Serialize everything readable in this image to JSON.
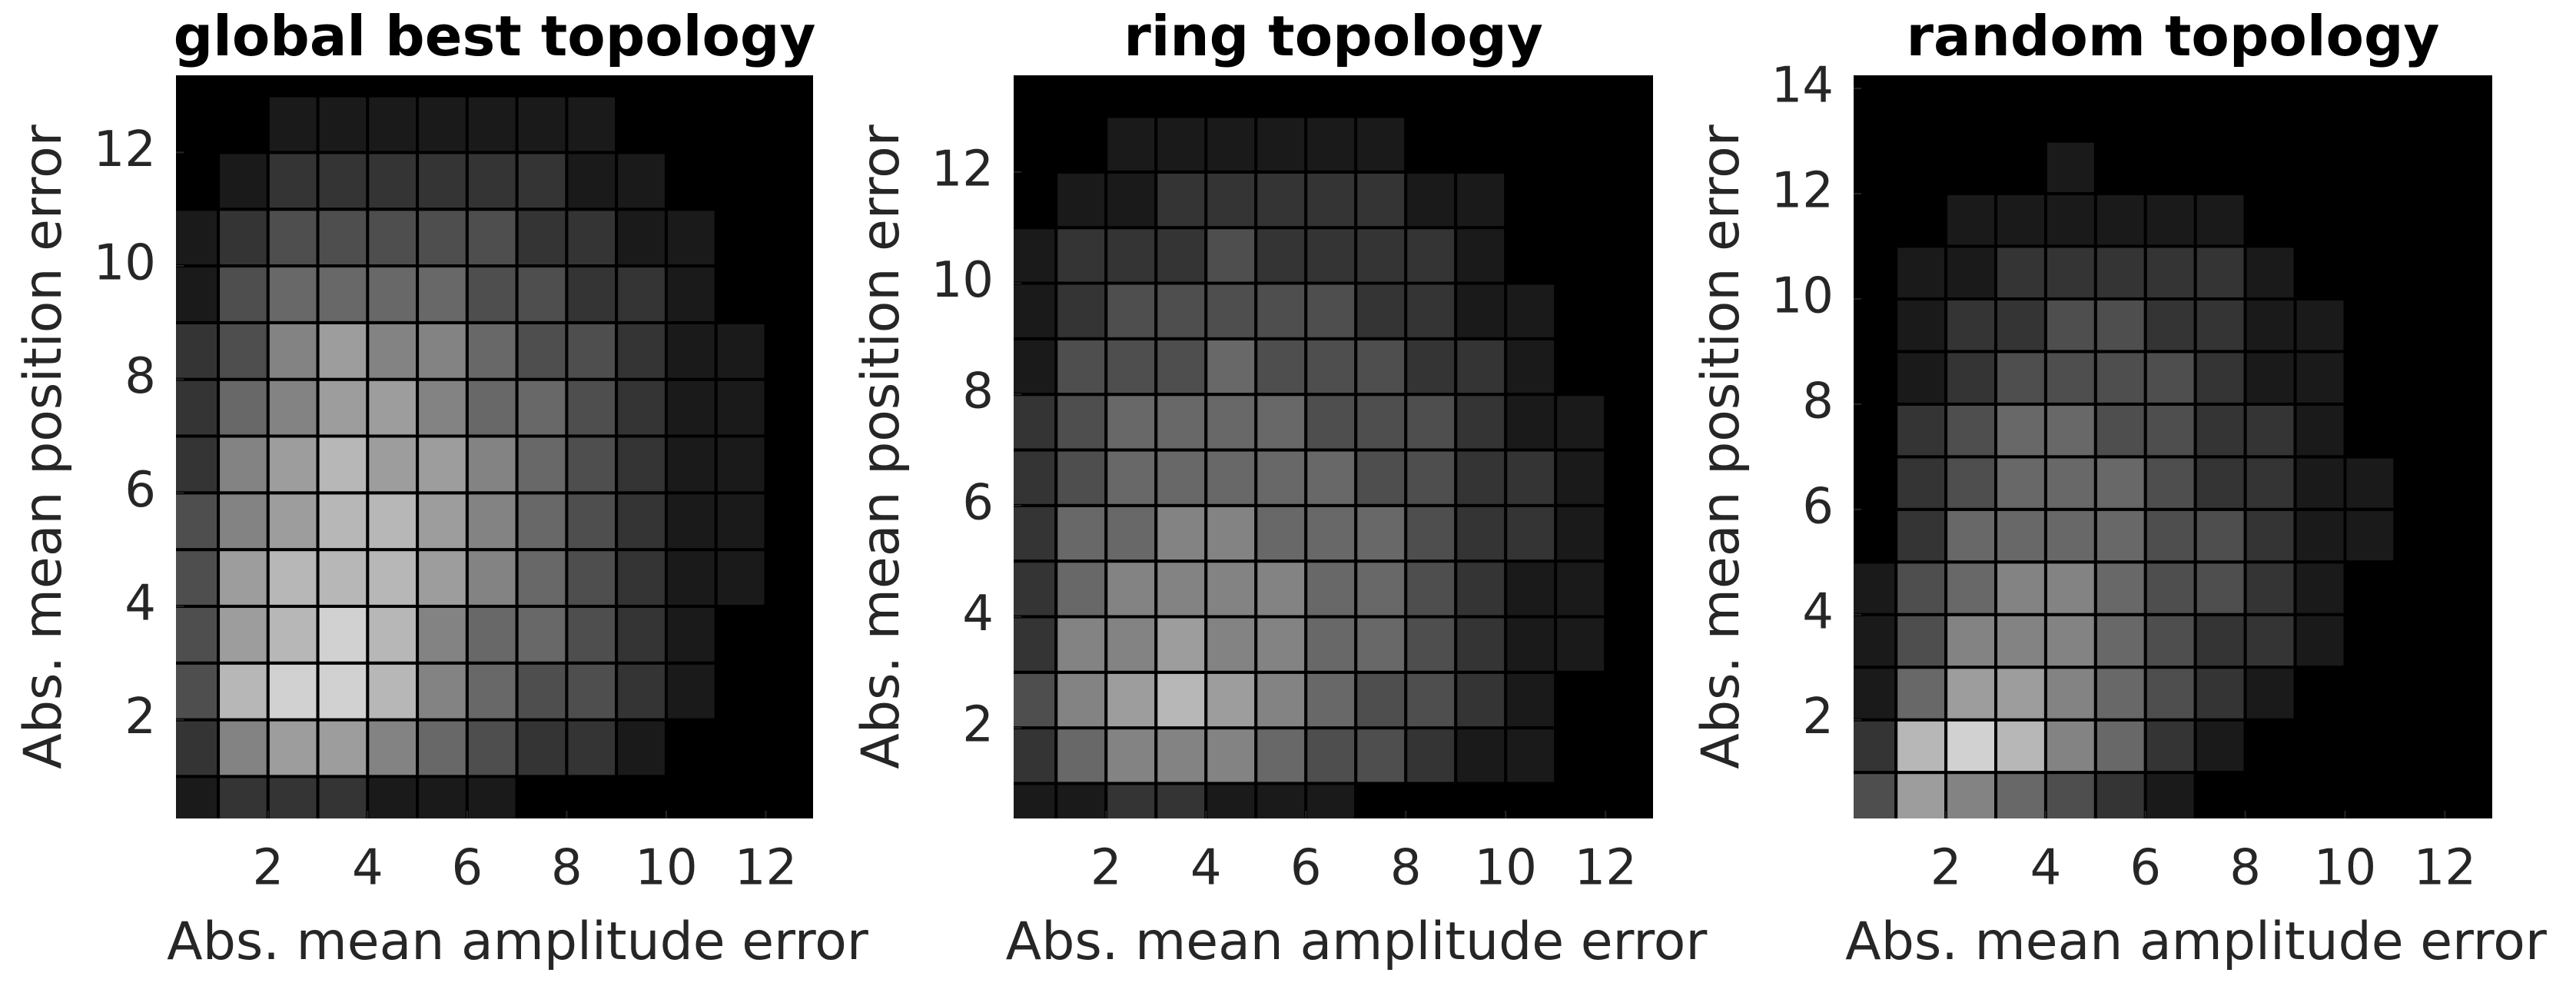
{
  "chart_data": [
    {
      "type": "heatmap",
      "title": "global best topology",
      "xlabel": "Abs. mean amplitude error",
      "ylabel": "Abs. mean position error",
      "colormap": "gray",
      "zlim": [
        0,
        9
      ],
      "xlim": [
        0.15,
        12.95
      ],
      "ylim": [
        0.26,
        13.36
      ],
      "xticks": [
        2,
        4,
        6,
        8,
        10,
        12
      ],
      "yticks": [
        2,
        4,
        6,
        8,
        10,
        12
      ],
      "xbins": [
        0,
        1,
        2,
        3,
        4,
        5,
        6,
        7,
        8,
        9,
        10,
        11,
        12,
        13
      ],
      "ybins": [
        0,
        1,
        2,
        3,
        4,
        5,
        6,
        7,
        8,
        9,
        10,
        11,
        12,
        13,
        14
      ],
      "z": [
        [
          1,
          2,
          2,
          2,
          1,
          1,
          1,
          0,
          0,
          0,
          0,
          0,
          0
        ],
        [
          2,
          5,
          6,
          6,
          5,
          4,
          3,
          2,
          2,
          1,
          0,
          0,
          0
        ],
        [
          3,
          7,
          8,
          8,
          7,
          5,
          4,
          3,
          3,
          2,
          1,
          0,
          0
        ],
        [
          3,
          6,
          7,
          8,
          7,
          5,
          4,
          4,
          3,
          2,
          1,
          0,
          0
        ],
        [
          3,
          6,
          7,
          7,
          7,
          6,
          5,
          4,
          3,
          2,
          1,
          1,
          0
        ],
        [
          3,
          5,
          6,
          7,
          7,
          6,
          5,
          4,
          3,
          2,
          1,
          1,
          0
        ],
        [
          2,
          5,
          6,
          7,
          6,
          6,
          5,
          4,
          3,
          2,
          1,
          1,
          0
        ],
        [
          2,
          4,
          5,
          6,
          6,
          5,
          4,
          4,
          3,
          2,
          1,
          1,
          0
        ],
        [
          2,
          3,
          5,
          6,
          5,
          5,
          4,
          3,
          3,
          2,
          1,
          1,
          0
        ],
        [
          1,
          3,
          4,
          4,
          4,
          4,
          3,
          3,
          2,
          2,
          1,
          0,
          0
        ],
        [
          1,
          2,
          3,
          3,
          3,
          3,
          3,
          2,
          2,
          1,
          1,
          0,
          0
        ],
        [
          0,
          1,
          2,
          2,
          2,
          2,
          2,
          2,
          1,
          1,
          0,
          0,
          0
        ],
        [
          0,
          0,
          1,
          1,
          1,
          1,
          1,
          1,
          1,
          0,
          0,
          0,
          0
        ],
        [
          0,
          0,
          0,
          0,
          0,
          0,
          0,
          0,
          0,
          0,
          0,
          0,
          0
        ]
      ]
    },
    {
      "type": "heatmap",
      "title": "ring topology",
      "xlabel": "Abs. mean amplitude error",
      "ylabel": "Abs. mean position error",
      "colormap": "gray",
      "zlim": [
        0,
        9
      ],
      "xlim": [
        0.15,
        12.95
      ],
      "ylim": [
        0.37,
        13.74
      ],
      "xticks": [
        2,
        4,
        6,
        8,
        10,
        12
      ],
      "yticks": [
        2,
        4,
        6,
        8,
        10,
        12
      ],
      "xbins": [
        0,
        1,
        2,
        3,
        4,
        5,
        6,
        7,
        8,
        9,
        10,
        11,
        12,
        13
      ],
      "ybins": [
        0,
        1,
        2,
        3,
        4,
        5,
        6,
        7,
        8,
        9,
        10,
        11,
        12,
        13,
        14
      ],
      "z": [
        [
          1,
          1,
          2,
          2,
          1,
          1,
          1,
          0,
          0,
          0,
          0,
          0,
          0
        ],
        [
          2,
          4,
          5,
          5,
          5,
          4,
          3,
          3,
          2,
          1,
          1,
          0,
          0
        ],
        [
          3,
          5,
          6,
          7,
          6,
          5,
          4,
          3,
          3,
          2,
          1,
          0,
          0
        ],
        [
          2,
          5,
          5,
          6,
          5,
          5,
          4,
          4,
          3,
          2,
          1,
          1,
          0
        ],
        [
          2,
          4,
          5,
          5,
          5,
          5,
          4,
          4,
          3,
          2,
          1,
          1,
          0
        ],
        [
          2,
          4,
          4,
          5,
          5,
          4,
          4,
          4,
          3,
          2,
          2,
          1,
          0
        ],
        [
          2,
          3,
          4,
          4,
          4,
          4,
          4,
          3,
          3,
          2,
          2,
          1,
          0
        ],
        [
          2,
          3,
          4,
          4,
          4,
          4,
          3,
          3,
          3,
          2,
          1,
          1,
          0
        ],
        [
          1,
          3,
          3,
          3,
          4,
          3,
          3,
          3,
          2,
          2,
          1,
          0,
          0
        ],
        [
          1,
          2,
          3,
          3,
          3,
          3,
          3,
          2,
          2,
          1,
          1,
          0,
          0
        ],
        [
          1,
          2,
          2,
          2,
          3,
          2,
          2,
          2,
          2,
          1,
          0,
          0,
          0
        ],
        [
          0,
          1,
          1,
          2,
          2,
          2,
          2,
          2,
          1,
          1,
          0,
          0,
          0
        ],
        [
          0,
          0,
          1,
          1,
          1,
          1,
          1,
          1,
          0,
          0,
          0,
          0,
          0
        ],
        [
          0,
          0,
          0,
          0,
          0,
          0,
          0,
          0,
          0,
          0,
          0,
          0,
          0
        ]
      ]
    },
    {
      "type": "heatmap",
      "title": "random topology",
      "xlabel": "Abs. mean amplitude error",
      "ylabel": "Abs. mean position error",
      "colormap": "gray",
      "zlim": [
        0,
        9
      ],
      "xlim": [
        0.15,
        12.95
      ],
      "ylim": [
        0.125,
        14.25
      ],
      "xticks": [
        2,
        4,
        6,
        8,
        10,
        12
      ],
      "yticks": [
        2,
        4,
        6,
        8,
        10,
        12,
        14
      ],
      "xbins": [
        0,
        1,
        2,
        3,
        4,
        5,
        6,
        7,
        8,
        9,
        10,
        11,
        12,
        13
      ],
      "ybins": [
        0,
        1,
        2,
        3,
        4,
        5,
        6,
        7,
        8,
        9,
        10,
        11,
        12,
        13,
        14,
        15
      ],
      "z": [
        [
          3,
          6,
          5,
          4,
          3,
          2,
          1,
          0,
          0,
          0,
          0,
          0,
          0
        ],
        [
          2,
          7,
          8,
          7,
          5,
          4,
          2,
          1,
          0,
          0,
          0,
          0,
          0
        ],
        [
          1,
          4,
          6,
          6,
          5,
          4,
          3,
          2,
          1,
          0,
          0,
          0,
          0
        ],
        [
          1,
          3,
          5,
          5,
          5,
          4,
          3,
          2,
          2,
          1,
          0,
          0,
          0
        ],
        [
          1,
          3,
          4,
          5,
          5,
          4,
          3,
          3,
          2,
          1,
          0,
          0,
          0
        ],
        [
          0,
          2,
          4,
          4,
          4,
          4,
          3,
          3,
          2,
          1,
          1,
          0,
          0
        ],
        [
          0,
          2,
          3,
          4,
          4,
          4,
          3,
          2,
          2,
          1,
          1,
          0,
          0
        ],
        [
          0,
          2,
          3,
          4,
          4,
          3,
          3,
          2,
          2,
          1,
          0,
          0,
          0
        ],
        [
          0,
          1,
          2,
          3,
          3,
          3,
          3,
          2,
          1,
          1,
          0,
          0,
          0
        ],
        [
          0,
          1,
          2,
          2,
          3,
          3,
          2,
          2,
          1,
          1,
          0,
          0,
          0
        ],
        [
          0,
          1,
          1,
          2,
          2,
          2,
          2,
          2,
          1,
          0,
          0,
          0,
          0
        ],
        [
          0,
          0,
          1,
          1,
          1,
          1,
          1,
          1,
          0,
          0,
          0,
          0,
          0
        ],
        [
          0,
          0,
          0,
          0,
          1,
          0,
          0,
          0,
          0,
          0,
          0,
          0,
          0
        ],
        [
          0,
          0,
          0,
          0,
          0,
          0,
          0,
          0,
          0,
          0,
          0,
          0,
          0
        ],
        [
          0,
          0,
          0,
          0,
          0,
          0,
          0,
          0,
          0,
          0,
          0,
          0,
          0
        ]
      ]
    }
  ]
}
